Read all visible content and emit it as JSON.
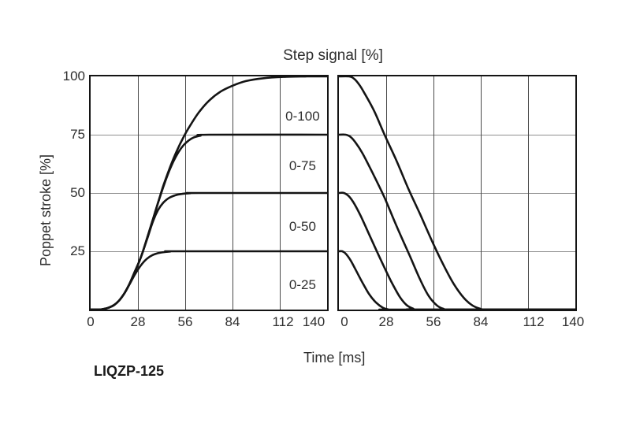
{
  "figure": {
    "title": "Step signal [%]",
    "x_axis_label": "Time [ms]",
    "y_axis_label": "Poppet stroke [%]",
    "model_label": "LIQZP-125"
  },
  "colors": {
    "curve": "#141414",
    "border": "#141414",
    "grid_vertical": "#4a4a4a",
    "grid_horizontal": "#8e8e8e",
    "text": "#2e2e2e",
    "background": "#ffffff"
  },
  "chart_data": [
    {
      "type": "line",
      "panel": "opening",
      "title": "Step signal [%]",
      "xlabel": "Time [ms]",
      "ylabel": "Poppet stroke [%]",
      "xlim": [
        0,
        140
      ],
      "ylim": [
        0,
        100
      ],
      "x_ticks": [
        0,
        28,
        56,
        84,
        112,
        140
      ],
      "y_ticks": [
        100,
        75,
        50,
        25
      ],
      "x_tick_labels": [
        "0",
        "28",
        "56",
        "84",
        "112",
        "140"
      ],
      "y_tick_labels": [
        "100",
        "75",
        "50",
        "25"
      ],
      "grid": true,
      "x_gridlines": [
        28,
        56,
        84,
        112
      ],
      "y_gridlines": [
        25,
        50,
        75
      ],
      "legend_position": "inside-right",
      "annotations": [
        {
          "text": "0-100",
          "x": 125.5,
          "y": 82.8
        },
        {
          "text": "0-75",
          "x": 125.5,
          "y": 61.5
        },
        {
          "text": "0-50",
          "x": 125.5,
          "y": 35.5
        },
        {
          "text": "0-25",
          "x": 125.5,
          "y": 10.5
        }
      ],
      "series": [
        {
          "name": "0-25",
          "points": [
            [
              0,
              0
            ],
            [
              5,
              0
            ],
            [
              8,
              0.3
            ],
            [
              11,
              0.9
            ],
            [
              14,
              2
            ],
            [
              17,
              4
            ],
            [
              20,
              7
            ],
            [
              23,
              10.8
            ],
            [
              26,
              14.8
            ],
            [
              29,
              18.2
            ],
            [
              32,
              20.9
            ],
            [
              35,
              22.7
            ],
            [
              38,
              23.8
            ],
            [
              42,
              24.5
            ],
            [
              47,
              24.9
            ],
            [
              52,
              25
            ],
            [
              140,
              25
            ]
          ]
        },
        {
          "name": "0-50",
          "points": [
            [
              0,
              0
            ],
            [
              5,
              0
            ],
            [
              8,
              0.3
            ],
            [
              11,
              0.9
            ],
            [
              14,
              2
            ],
            [
              17,
              4
            ],
            [
              20,
              7
            ],
            [
              23,
              11
            ],
            [
              26,
              16
            ],
            [
              29,
              21
            ],
            [
              31,
              25
            ],
            [
              34,
              31.5
            ],
            [
              37,
              38
            ],
            [
              40,
              42.8
            ],
            [
              43,
              45.8
            ],
            [
              46,
              47.7
            ],
            [
              50,
              49
            ],
            [
              54,
              49.6
            ],
            [
              59,
              49.9
            ],
            [
              64,
              50
            ],
            [
              140,
              50
            ]
          ]
        },
        {
          "name": "0-75",
          "points": [
            [
              0,
              0
            ],
            [
              5,
              0
            ],
            [
              8,
              0.3
            ],
            [
              11,
              0.9
            ],
            [
              14,
              2
            ],
            [
              17,
              4
            ],
            [
              20,
              7
            ],
            [
              23,
              11
            ],
            [
              26,
              16
            ],
            [
              29,
              21
            ],
            [
              31,
              25
            ],
            [
              34,
              32
            ],
            [
              37,
              39
            ],
            [
              40,
              46
            ],
            [
              43,
              52.5
            ],
            [
              46,
              58.5
            ],
            [
              49,
              63.5
            ],
            [
              52,
              67.5
            ],
            [
              55,
              70.5
            ],
            [
              58,
              72.5
            ],
            [
              61,
              73.8
            ],
            [
              65,
              74.6
            ],
            [
              70,
              75
            ],
            [
              140,
              75
            ]
          ]
        },
        {
          "name": "0-100",
          "points": [
            [
              0,
              0
            ],
            [
              5,
              0
            ],
            [
              8,
              0.3
            ],
            [
              11,
              0.9
            ],
            [
              14,
              2
            ],
            [
              17,
              4
            ],
            [
              20,
              7
            ],
            [
              23,
              11
            ],
            [
              26,
              16
            ],
            [
              29,
              21
            ],
            [
              31,
              25
            ],
            [
              34,
              32
            ],
            [
              37,
              39
            ],
            [
              40,
              46
            ],
            [
              43,
              53
            ],
            [
              47,
              61
            ],
            [
              51,
              68
            ],
            [
              55,
              74
            ],
            [
              59,
              79
            ],
            [
              64,
              84.5
            ],
            [
              70,
              89.5
            ],
            [
              77,
              93.5
            ],
            [
              84,
              96
            ],
            [
              92,
              98
            ],
            [
              102,
              99.2
            ],
            [
              114,
              99.8
            ],
            [
              128,
              100
            ],
            [
              140,
              100
            ]
          ]
        }
      ]
    },
    {
      "type": "line",
      "panel": "closing",
      "title": "Step signal [%]",
      "xlabel": "Time [ms]",
      "ylabel": "",
      "xlim": [
        0,
        140
      ],
      "ylim": [
        0,
        100
      ],
      "x_ticks": [
        0,
        28,
        56,
        84,
        112,
        140
      ],
      "y_ticks": [],
      "x_tick_labels": [
        "0",
        "28",
        "56",
        "84",
        "112",
        "140"
      ],
      "y_tick_labels": [],
      "grid": true,
      "x_gridlines": [
        28,
        56,
        84,
        112
      ],
      "y_gridlines": [
        25,
        50,
        75
      ],
      "annotations": [],
      "series": [
        {
          "name": "0-25",
          "points": [
            [
              0,
              25
            ],
            [
              2,
              25
            ],
            [
              4,
              24
            ],
            [
              7,
              21
            ],
            [
              10,
              17
            ],
            [
              14,
              11.5
            ],
            [
              18,
              6.5
            ],
            [
              22,
              3
            ],
            [
              26,
              0.8
            ],
            [
              29,
              0.1
            ],
            [
              33,
              0
            ],
            [
              140,
              0
            ]
          ]
        },
        {
          "name": "0-50",
          "points": [
            [
              0,
              50
            ],
            [
              3,
              50
            ],
            [
              6,
              48.5
            ],
            [
              9,
              45.5
            ],
            [
              13,
              40
            ],
            [
              19,
              30.5
            ],
            [
              25,
              21
            ],
            [
              31,
              12
            ],
            [
              36,
              5.5
            ],
            [
              40,
              2
            ],
            [
              44,
              0.4
            ],
            [
              48,
              0
            ],
            [
              140,
              0
            ]
          ]
        },
        {
          "name": "0-75",
          "points": [
            [
              0,
              75
            ],
            [
              4,
              75
            ],
            [
              7,
              74
            ],
            [
              10,
              71.5
            ],
            [
              14,
              67
            ],
            [
              20,
              58.5
            ],
            [
              27,
              48
            ],
            [
              34,
              36
            ],
            [
              42,
              23
            ],
            [
              48,
              13
            ],
            [
              53,
              6
            ],
            [
              58,
              1.8
            ],
            [
              62,
              0.3
            ],
            [
              66,
              0
            ],
            [
              140,
              0
            ]
          ]
        },
        {
          "name": "0-100",
          "points": [
            [
              0,
              100
            ],
            [
              6,
              100
            ],
            [
              9,
              99
            ],
            [
              12,
              96.5
            ],
            [
              15,
              93
            ],
            [
              21,
              85
            ],
            [
              27,
              75
            ],
            [
              34,
              64
            ],
            [
              41,
              52
            ],
            [
              48,
              41
            ],
            [
              56,
              28
            ],
            [
              62,
              19
            ],
            [
              68,
              11
            ],
            [
              74,
              5
            ],
            [
              79,
              1.8
            ],
            [
              84,
              0.3
            ],
            [
              89,
              0
            ],
            [
              140,
              0
            ]
          ]
        }
      ]
    }
  ]
}
